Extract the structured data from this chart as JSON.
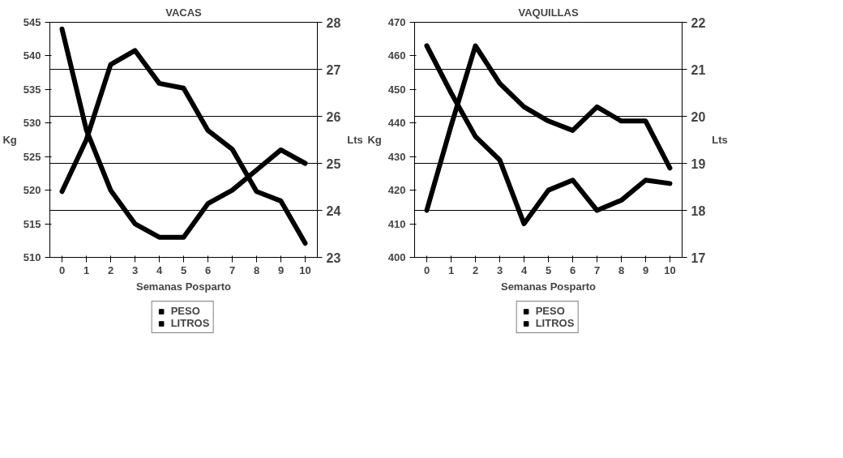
{
  "chart_data": [
    {
      "type": "line",
      "title": "VACAS",
      "xlabel": "Semanas Posparto",
      "ylabel": "Kg",
      "y2label": "Lts",
      "x": [
        0,
        1,
        2,
        3,
        4,
        5,
        6,
        7,
        8,
        9,
        10
      ],
      "xlim": [
        -0.5,
        10.5
      ],
      "xticks": [
        0,
        1,
        2,
        3,
        4,
        5,
        6,
        7,
        8,
        9,
        10
      ],
      "ylim": [
        510,
        545
      ],
      "yticks": [
        510,
        515,
        520,
        525,
        530,
        535,
        540,
        545
      ],
      "y2lim": [
        23,
        28
      ],
      "y2ticks": [
        23,
        24,
        25,
        26,
        27,
        28
      ],
      "grid": "y",
      "legend": "bottom",
      "series": [
        {
          "name": "PESO",
          "color": "#000000",
          "values": [
            544,
            529,
            520,
            515,
            513,
            513,
            518,
            520,
            523,
            526,
            524
          ]
        },
        {
          "name": "LITROS",
          "color": "#000000",
          "axis": "y2",
          "values": [
            24.4,
            25.5,
            27.1,
            27.4,
            26.7,
            26.6,
            25.7,
            25.3,
            24.4,
            24.2,
            23.3
          ]
        }
      ]
    },
    {
      "type": "line",
      "title": "VAQUILLAS",
      "xlabel": "Semanas Posparto",
      "ylabel": "Kg",
      "y2label": "Lts",
      "x": [
        0,
        1,
        2,
        3,
        4,
        5,
        6,
        7,
        8,
        9,
        10
      ],
      "xlim": [
        -0.5,
        10.5
      ],
      "xticks": [
        0,
        1,
        2,
        3,
        4,
        5,
        6,
        7,
        8,
        9,
        10
      ],
      "ylim": [
        400,
        470
      ],
      "yticks": [
        400,
        410,
        420,
        430,
        440,
        450,
        460,
        470
      ],
      "y2lim": [
        17,
        22
      ],
      "y2ticks": [
        17,
        18,
        19,
        20,
        21,
        22
      ],
      "grid": "y",
      "legend": "bottom",
      "series": [
        {
          "name": "PESO",
          "color": "#000000",
          "values": [
            463,
            449,
            436,
            429,
            410,
            420,
            423,
            414,
            417,
            423,
            422
          ]
        },
        {
          "name": "LITROS",
          "color": "#000000",
          "axis": "y2",
          "values": [
            18.0,
            19.8,
            21.5,
            20.7,
            20.2,
            19.9,
            19.7,
            20.2,
            19.9,
            19.9,
            18.9
          ]
        }
      ]
    }
  ]
}
